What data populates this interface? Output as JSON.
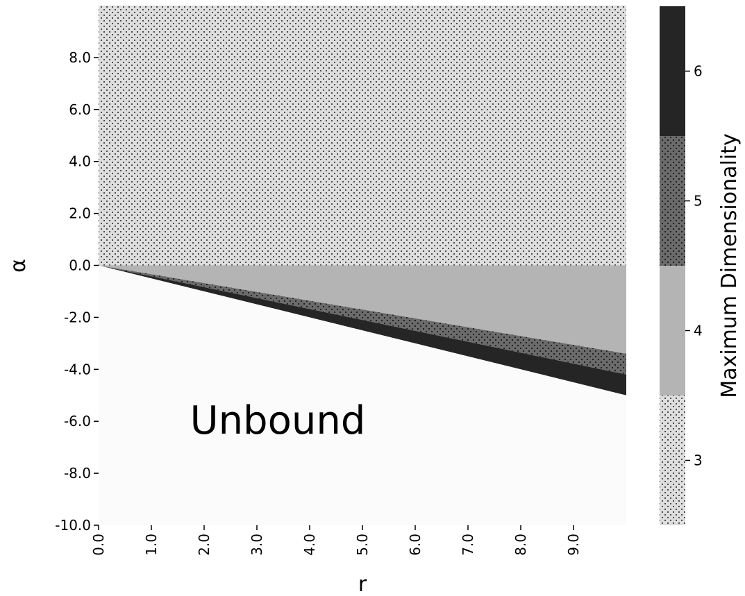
{
  "chart_data": {
    "type": "heatmap",
    "title": "",
    "xlabel": "r",
    "ylabel": "α",
    "xlim": [
      0,
      10
    ],
    "ylim": [
      -10,
      10
    ],
    "x_ticks": [
      "0.0",
      "1.0",
      "2.0",
      "3.0",
      "4.0",
      "5.0",
      "6.0",
      "7.0",
      "8.0",
      "9.0"
    ],
    "y_ticks": [
      "-10.0",
      "-8.0",
      "-6.0",
      "-4.0",
      "-2.0",
      "0.0",
      "2.0",
      "4.0",
      "6.0",
      "8.0"
    ],
    "regions": [
      {
        "value": "Unbound",
        "description": "α below -r/2",
        "color": "#fbfbfb"
      },
      {
        "value": 6,
        "boundary_slope_upper": -0.42,
        "boundary_slope_lower": -0.5,
        "color": "#252525"
      },
      {
        "value": 5,
        "boundary_slope_upper": -0.34,
        "boundary_slope_lower": -0.42,
        "color": "#6b6b6b",
        "dotted": true
      },
      {
        "value": 4,
        "boundary_slope_upper": 0,
        "boundary_slope_lower": -0.34,
        "color": "#b4b4b4"
      },
      {
        "value": 3,
        "description": "α ≥ 0",
        "color": "#dedede",
        "dotted": true
      }
    ],
    "annotation": "Unbound",
    "colorbar": {
      "label": "Maximum Dimensionality",
      "ticks": [
        "3",
        "4",
        "5",
        "6"
      ],
      "range": [
        2.5,
        6.5
      ],
      "levels": [
        {
          "value": 3,
          "color": "#dedede",
          "dotted": true
        },
        {
          "value": 4,
          "color": "#b4b4b4",
          "dotted": false
        },
        {
          "value": 5,
          "color": "#6b6b6b",
          "dotted": true
        },
        {
          "value": 6,
          "color": "#252525",
          "dotted": false
        }
      ]
    }
  }
}
